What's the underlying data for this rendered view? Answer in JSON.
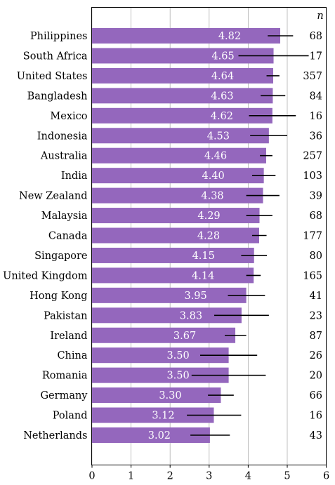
{
  "chart_data": {
    "type": "bar",
    "orientation": "horizontal",
    "categories": [
      "Philippines",
      "South Africa",
      "United States",
      "Bangladesh",
      "Mexico",
      "Indonesia",
      "Australia",
      "India",
      "New Zealand",
      "Malaysia",
      "Canada",
      "Singapore",
      "United Kingdom",
      "Hong Kong",
      "Pakistan",
      "Ireland",
      "China",
      "Romania",
      "Germany",
      "Poland",
      "Netherlands"
    ],
    "values": [
      4.82,
      4.65,
      4.64,
      4.63,
      4.62,
      4.53,
      4.46,
      4.4,
      4.38,
      4.29,
      4.28,
      4.15,
      4.14,
      3.95,
      3.83,
      3.67,
      3.5,
      3.5,
      3.3,
      3.12,
      3.02
    ],
    "value_labels": [
      "4.82",
      "4.65",
      "4.64",
      "4.63",
      "4.62",
      "4.53",
      "4.46",
      "4.40",
      "4.38",
      "4.29",
      "4.28",
      "4.15",
      "4.14",
      "3.95",
      "3.83",
      "3.67",
      "3.50",
      "3.50",
      "3.30",
      "3.12",
      "3.02"
    ],
    "error_low": [
      4.5,
      3.75,
      4.47,
      4.32,
      4.02,
      4.05,
      4.3,
      4.1,
      3.95,
      3.95,
      4.1,
      3.82,
      3.95,
      3.48,
      3.13,
      3.4,
      2.77,
      2.55,
      2.97,
      2.43,
      2.52
    ],
    "error_high": [
      5.15,
      5.55,
      4.8,
      4.95,
      5.22,
      5.0,
      4.62,
      4.7,
      4.8,
      4.62,
      4.47,
      4.48,
      4.32,
      4.43,
      4.53,
      3.95,
      4.23,
      4.45,
      3.63,
      3.82,
      3.53
    ],
    "n_header": "n",
    "n_values": [
      "68",
      "17",
      "357",
      "84",
      "16",
      "36",
      "257",
      "103",
      "39",
      "68",
      "177",
      "80",
      "165",
      "41",
      "23",
      "87",
      "26",
      "20",
      "66",
      "16",
      "43"
    ],
    "xlim": [
      0,
      6
    ],
    "xticks": [
      "0",
      "1",
      "2",
      "3",
      "4",
      "5",
      "6"
    ],
    "grid": "vertical",
    "bar_color": "#9467bd",
    "error_color": "#000000",
    "title": "",
    "xlabel": "",
    "ylabel": ""
  }
}
